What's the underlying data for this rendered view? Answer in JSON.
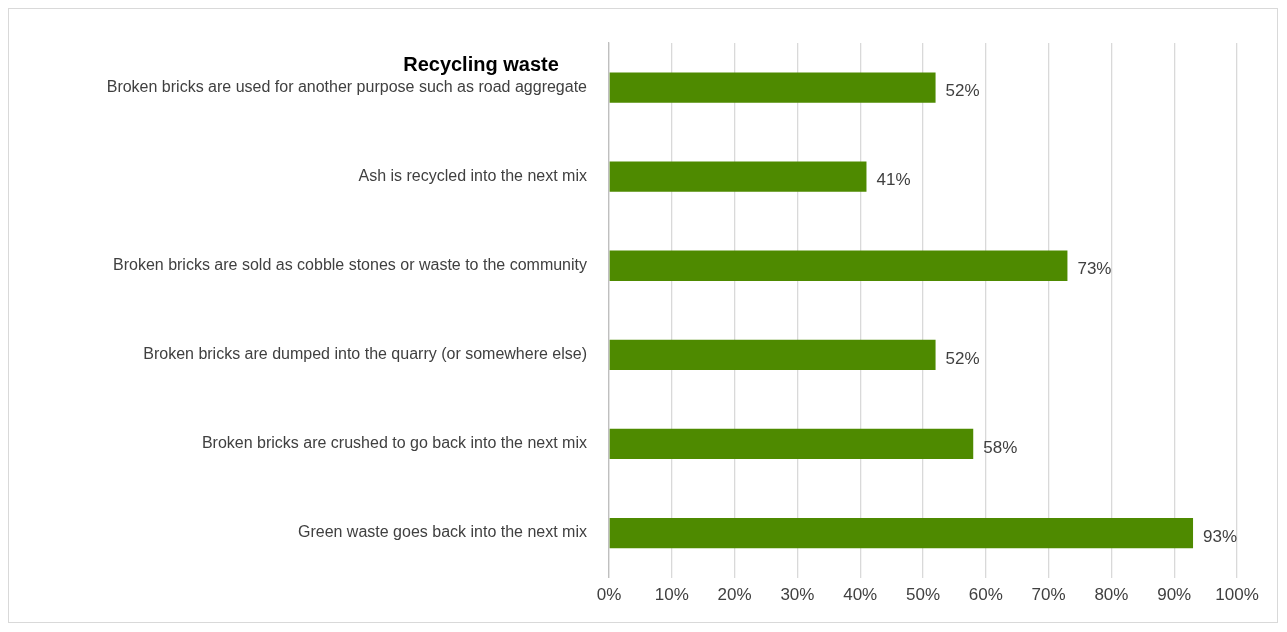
{
  "chart_data": {
    "type": "bar",
    "orientation": "horizontal",
    "title": "Recycling waste",
    "categories": [
      "Broken bricks are used for another purpose such as road aggregate",
      "Ash is recycled into the next mix",
      "Broken bricks are sold as cobble stones or waste to the community",
      "Broken bricks are dumped into the quarry (or somewhere else)",
      "Broken bricks are crushed to go back into the next mix",
      "Green waste goes back into the next mix"
    ],
    "values": [
      52,
      41,
      73,
      52,
      58,
      93
    ],
    "value_labels": [
      "52%",
      "41%",
      "73%",
      "52%",
      "58%",
      "93%"
    ],
    "color": "#4e8a00",
    "xlim": [
      0,
      100
    ],
    "xticks": [
      {
        "value": 0,
        "label": "0%"
      },
      {
        "value": 10,
        "label": "10%"
      },
      {
        "value": 20,
        "label": "20%"
      },
      {
        "value": 30,
        "label": "30%"
      },
      {
        "value": 40,
        "label": "40%"
      },
      {
        "value": 50,
        "label": "50%"
      },
      {
        "value": 60,
        "label": "60%"
      },
      {
        "value": 70,
        "label": "70%"
      },
      {
        "value": 80,
        "label": "80%"
      },
      {
        "value": 90,
        "label": "90%"
      },
      {
        "value": 100,
        "label": "100%"
      }
    ],
    "grid": "x",
    "legend": false
  }
}
